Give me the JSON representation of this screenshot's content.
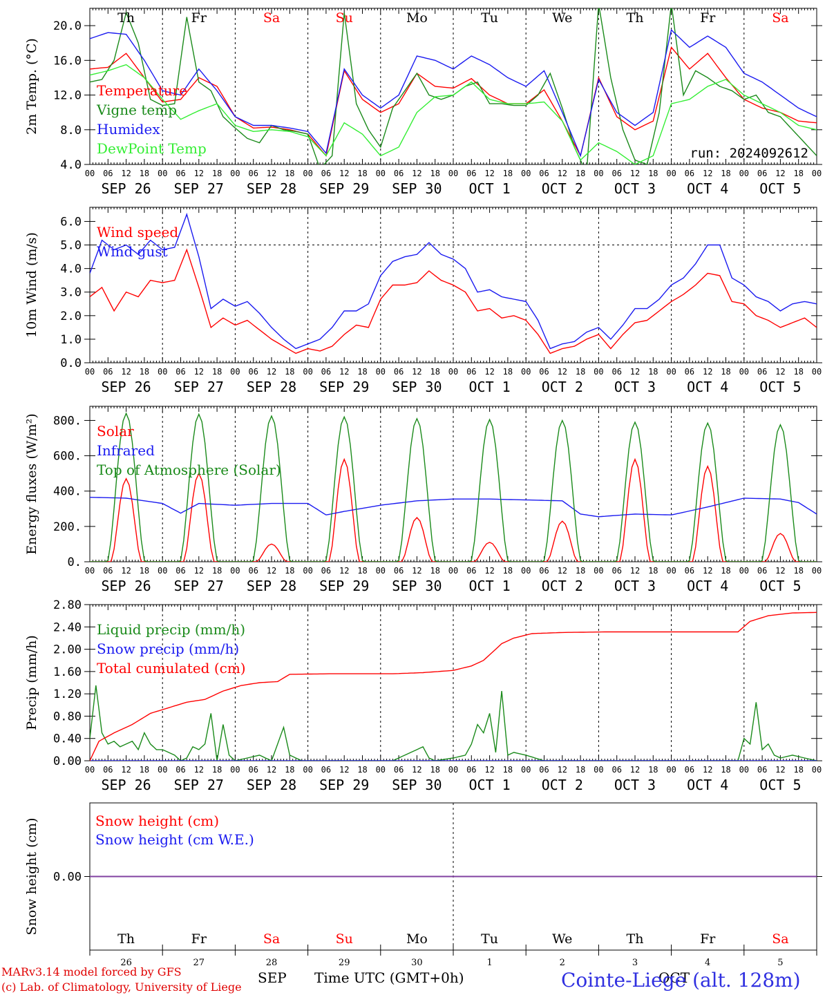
{
  "colors": {
    "red": "#ff0000",
    "dark_green": "#1a8a1a",
    "blue": "#1a1af0",
    "light_green": "#33ee33",
    "purple": "#8040a0"
  },
  "days": [
    "Th",
    "Fr",
    "Sa",
    "Su",
    "Mo",
    "Tu",
    "We",
    "Th",
    "Fr",
    "Sa"
  ],
  "day_colors": [
    "black",
    "black",
    "red",
    "red",
    "black",
    "black",
    "black",
    "black",
    "black",
    "red"
  ],
  "dates": [
    "SEP 26",
    "SEP 27",
    "SEP 28",
    "SEP 29",
    "SEP 30",
    "OCT  1",
    "OCT  2",
    "OCT  3",
    "OCT  4",
    "OCT  5"
  ],
  "day_numbers": [
    "26",
    "27",
    "28",
    "29",
    "30",
    "1",
    "2",
    "3",
    "4",
    "5"
  ],
  "hour_labels": [
    "00",
    "06",
    "12",
    "18"
  ],
  "hour_final": "00",
  "run_label": "run: 2024092612",
  "footer": {
    "model": "MARv3.14 model forced by GFS",
    "lab": "(c) Lab. of Climatology, University of Liege",
    "month_sep": "SEP",
    "month_oct": "OCT",
    "xtitle": "Time UTC (GMT+0h)",
    "station": "Cointe-Liege (alt. 128m)"
  },
  "chart_data": [
    {
      "type": "line",
      "ylabel": "2m Temp. (°C)",
      "yticks": [
        "4.0",
        "8.0",
        "12.0",
        "16.0",
        "20.0"
      ],
      "ylim": [
        4,
        22
      ],
      "x_unit": "hours from 2024-09-26 00 UTC",
      "series": [
        {
          "name": "Temperature",
          "color": "#ff0000",
          "x": [
            0,
            6,
            12,
            18,
            24,
            30,
            36,
            42,
            48,
            54,
            60,
            66,
            72,
            78,
            84,
            90,
            96,
            102,
            108,
            114,
            120,
            126,
            132,
            138,
            144,
            150,
            156,
            162,
            168,
            174,
            180,
            186,
            192,
            198,
            204,
            210,
            216,
            222,
            228,
            234,
            240
          ],
          "values": [
            15.0,
            15.2,
            16.8,
            14.0,
            11.2,
            11.5,
            14.0,
            13.0,
            9.5,
            8.2,
            8.3,
            8.0,
            7.5,
            5.0,
            14.8,
            11.5,
            10.0,
            11.0,
            14.5,
            13.0,
            12.8,
            13.9,
            12.0,
            11.0,
            11.0,
            12.6,
            9.0,
            5.0,
            14.0,
            9.5,
            8.0,
            9.0,
            17.5,
            15.0,
            16.8,
            14.0,
            11.5,
            10.5,
            10.0,
            9.0,
            8.8
          ]
        },
        {
          "name": "Vigne temp",
          "color": "#1a8a1a",
          "x": [
            0,
            4,
            8,
            12,
            16,
            20,
            24,
            28,
            32,
            36,
            40,
            44,
            48,
            52,
            56,
            60,
            64,
            68,
            72,
            76,
            80,
            84,
            88,
            92,
            96,
            100,
            104,
            108,
            112,
            116,
            120,
            124,
            128,
            132,
            136,
            140,
            144,
            148,
            152,
            156,
            160,
            164,
            168,
            172,
            176,
            180,
            184,
            188,
            192,
            196,
            200,
            204,
            208,
            212,
            216,
            220,
            224,
            228,
            232,
            236,
            240
          ],
          "values": [
            13.5,
            13.8,
            16.0,
            21.5,
            18.0,
            11.5,
            10.8,
            11.0,
            21.0,
            13.5,
            12.5,
            9.5,
            8.2,
            7.0,
            6.5,
            8.5,
            8.0,
            7.8,
            7.5,
            3.5,
            5.0,
            21.5,
            11.0,
            8.0,
            6.0,
            10.5,
            12.5,
            14.5,
            12.0,
            11.5,
            12.0,
            13.0,
            13.5,
            11.0,
            11.0,
            10.8,
            10.8,
            12.0,
            14.5,
            10.5,
            6.0,
            3.0,
            22.5,
            14.0,
            8.0,
            4.5,
            4.0,
            10.0,
            22.5,
            12.0,
            14.8,
            14.0,
            13.0,
            12.5,
            11.5,
            12.0,
            10.0,
            9.5,
            8.0,
            6.5,
            5.0
          ]
        },
        {
          "name": "Humidex",
          "color": "#1a1af0",
          "x": [
            0,
            6,
            12,
            18,
            24,
            30,
            36,
            42,
            48,
            54,
            60,
            66,
            72,
            78,
            84,
            90,
            96,
            102,
            108,
            114,
            120,
            126,
            132,
            138,
            144,
            150,
            156,
            162,
            168,
            174,
            180,
            186,
            192,
            198,
            204,
            210,
            216,
            222,
            228,
            234,
            240
          ],
          "values": [
            18.5,
            19.2,
            19.0,
            16.0,
            12.5,
            12.0,
            15.0,
            12.5,
            9.5,
            8.5,
            8.5,
            8.2,
            7.8,
            5.3,
            15.0,
            12.0,
            10.5,
            12.0,
            16.5,
            16.0,
            15.0,
            16.5,
            15.5,
            14.0,
            13.0,
            14.8,
            10.0,
            5.0,
            13.8,
            10.0,
            8.5,
            10.0,
            19.5,
            17.5,
            18.8,
            17.5,
            14.5,
            13.5,
            12.0,
            10.5,
            9.5
          ]
        },
        {
          "name": "DewPoint Temp",
          "color": "#33ee33",
          "x": [
            0,
            6,
            12,
            18,
            24,
            30,
            36,
            42,
            48,
            54,
            60,
            66,
            72,
            78,
            84,
            90,
            96,
            102,
            108,
            114,
            120,
            126,
            132,
            138,
            144,
            150,
            156,
            162,
            168,
            174,
            180,
            186,
            192,
            198,
            204,
            210,
            216,
            222,
            228,
            234,
            240
          ],
          "values": [
            14.3,
            14.8,
            15.5,
            14.0,
            11.5,
            9.2,
            10.2,
            11.0,
            8.5,
            7.8,
            8.0,
            7.8,
            7.2,
            5.0,
            8.8,
            7.5,
            5.0,
            6.0,
            10.0,
            11.8,
            12.0,
            13.5,
            11.5,
            11.0,
            11.0,
            11.2,
            9.0,
            4.5,
            6.5,
            5.5,
            4.0,
            5.0,
            11.0,
            11.5,
            13.0,
            13.8,
            12.0,
            11.0,
            10.0,
            8.5,
            8.0
          ]
        }
      ]
    },
    {
      "type": "line",
      "ylabel": "10m Wind (m/s)",
      "yticks": [
        "0.0",
        "1.0",
        "2.0",
        "3.0",
        "4.0",
        "5.0",
        "6.0"
      ],
      "ylim": [
        0,
        6.6
      ],
      "reference_line": 5.0,
      "x_unit": "hours from 2024-09-26 00 UTC",
      "series": [
        {
          "name": "Wind speed",
          "color": "#ff0000",
          "x": [
            0,
            4,
            8,
            12,
            16,
            20,
            24,
            28,
            32,
            36,
            40,
            44,
            48,
            52,
            56,
            60,
            64,
            68,
            72,
            76,
            80,
            84,
            88,
            92,
            96,
            100,
            104,
            108,
            112,
            116,
            120,
            124,
            128,
            132,
            136,
            140,
            144,
            148,
            152,
            156,
            160,
            164,
            168,
            172,
            176,
            180,
            184,
            188,
            192,
            196,
            200,
            204,
            208,
            212,
            216,
            220,
            224,
            228,
            232,
            236,
            240
          ],
          "values": [
            2.8,
            3.2,
            2.2,
            3.0,
            2.8,
            3.5,
            3.4,
            3.5,
            4.8,
            3.2,
            1.5,
            1.9,
            1.6,
            1.8,
            1.4,
            1.0,
            0.7,
            0.4,
            0.6,
            0.5,
            0.7,
            1.2,
            1.6,
            1.5,
            2.7,
            3.3,
            3.3,
            3.4,
            3.9,
            3.5,
            3.3,
            3.0,
            2.2,
            2.3,
            1.9,
            2.0,
            1.8,
            1.2,
            0.4,
            0.6,
            0.7,
            1.0,
            1.2,
            0.6,
            1.2,
            1.7,
            1.8,
            2.2,
            2.6,
            2.9,
            3.3,
            3.8,
            3.7,
            2.6,
            2.5,
            2.0,
            1.8,
            1.5,
            1.7,
            1.9,
            1.5
          ]
        },
        {
          "name": "Wind gust",
          "color": "#1a1af0",
          "x": [
            0,
            4,
            8,
            12,
            16,
            20,
            24,
            28,
            32,
            36,
            40,
            44,
            48,
            52,
            56,
            60,
            64,
            68,
            72,
            76,
            80,
            84,
            88,
            92,
            96,
            100,
            104,
            108,
            112,
            116,
            120,
            124,
            128,
            132,
            136,
            140,
            144,
            148,
            152,
            156,
            160,
            164,
            168,
            172,
            176,
            180,
            184,
            188,
            192,
            196,
            200,
            204,
            208,
            212,
            216,
            220,
            224,
            228,
            232,
            236,
            240
          ],
          "values": [
            3.8,
            5.2,
            4.8,
            5.0,
            4.6,
            5.2,
            4.8,
            4.9,
            6.3,
            4.5,
            2.3,
            2.7,
            2.4,
            2.6,
            2.1,
            1.5,
            1.0,
            0.6,
            0.8,
            1.0,
            1.5,
            2.2,
            2.2,
            2.5,
            3.7,
            4.3,
            4.5,
            4.6,
            5.1,
            4.6,
            4.4,
            4.0,
            3.0,
            3.1,
            2.8,
            2.7,
            2.6,
            1.8,
            0.6,
            0.8,
            0.9,
            1.3,
            1.5,
            1.0,
            1.6,
            2.3,
            2.3,
            2.7,
            3.3,
            3.6,
            4.2,
            5.0,
            5.0,
            3.6,
            3.3,
            2.8,
            2.6,
            2.2,
            2.5,
            2.6,
            2.5
          ]
        }
      ]
    },
    {
      "type": "line",
      "ylabel": "Energy fluxes (W/m²)",
      "yticks": [
        "0.",
        "200.",
        "400.",
        "600.",
        "800."
      ],
      "ylim": [
        0,
        880
      ],
      "x_unit": "hours from 2024-09-26 00 UTC",
      "series": [
        {
          "name": "Solar",
          "color": "#ff0000",
          "daily_peak": [
            470,
            500,
            100,
            580,
            250,
            110,
            230,
            580,
            540,
            160
          ]
        },
        {
          "name": "Infrared",
          "color": "#1a1af0",
          "x": [
            0,
            12,
            24,
            30,
            36,
            48,
            60,
            72,
            78,
            84,
            96,
            108,
            120,
            132,
            144,
            156,
            162,
            168,
            180,
            192,
            204,
            216,
            228,
            234,
            240
          ],
          "values": [
            365,
            360,
            330,
            275,
            330,
            320,
            330,
            330,
            265,
            285,
            320,
            345,
            355,
            355,
            350,
            345,
            270,
            255,
            270,
            265,
            310,
            360,
            355,
            335,
            270
          ]
        },
        {
          "name": "Top of Atmosphere (Solar)",
          "color": "#1a8a1a",
          "daily_peak": [
            840,
            835,
            825,
            820,
            810,
            805,
            800,
            790,
            785,
            775
          ]
        }
      ]
    },
    {
      "type": "line",
      "ylabel": "Precip (mm/h)",
      "yticks": [
        "0.00",
        "0.40",
        "0.80",
        "1.20",
        "1.60",
        "2.00",
        "2.40",
        "2.80"
      ],
      "ylim": [
        0,
        2.8
      ],
      "x_unit": "hours from 2024-09-26 00 UTC",
      "series": [
        {
          "name": "Liquid precip (mm/h)",
          "color": "#1a8a1a",
          "x": [
            0,
            2,
            4,
            6,
            8,
            10,
            12,
            14,
            16,
            18,
            20,
            22,
            24,
            26,
            28,
            30,
            32,
            34,
            36,
            38,
            40,
            42,
            44,
            46,
            48,
            52,
            56,
            60,
            62,
            64,
            66,
            70,
            80,
            100,
            110,
            112,
            114,
            120,
            124,
            126,
            128,
            130,
            132,
            134,
            136,
            138,
            140,
            144,
            150,
            160,
            200,
            214,
            216,
            218,
            220,
            222,
            224,
            226,
            228,
            232,
            236,
            240
          ],
          "values": [
            0.4,
            1.35,
            0.5,
            0.3,
            0.35,
            0.25,
            0.3,
            0.35,
            0.2,
            0.5,
            0.3,
            0.2,
            0.2,
            0.15,
            0.1,
            0.0,
            0.05,
            0.25,
            0.2,
            0.3,
            0.85,
            0.0,
            0.65,
            0.1,
            0.0,
            0.05,
            0.1,
            0.0,
            0.3,
            0.6,
            0.1,
            0.0,
            0.0,
            0.0,
            0.25,
            0.05,
            0.0,
            0.05,
            0.1,
            0.3,
            0.65,
            0.5,
            0.85,
            0.15,
            1.25,
            0.1,
            0.15,
            0.1,
            0.0,
            0.0,
            0.0,
            0.0,
            0.4,
            0.3,
            1.05,
            0.2,
            0.3,
            0.1,
            0.05,
            0.1,
            0.05,
            0.0
          ]
        },
        {
          "name": "Snow precip (mm/h)",
          "color": "#1a1af0",
          "x": [
            0,
            240
          ],
          "values": [
            0,
            0
          ]
        },
        {
          "name": "Total cumulated (cm)",
          "color": "#ff0000",
          "x": [
            0,
            3,
            8,
            14,
            20,
            26,
            32,
            38,
            44,
            50,
            56,
            62,
            66,
            80,
            100,
            110,
            120,
            126,
            130,
            136,
            140,
            146,
            156,
            170,
            190,
            214,
            218,
            224,
            232,
            240
          ],
          "values": [
            0.0,
            0.35,
            0.5,
            0.65,
            0.85,
            0.95,
            1.05,
            1.1,
            1.25,
            1.35,
            1.4,
            1.42,
            1.55,
            1.56,
            1.56,
            1.58,
            1.62,
            1.7,
            1.8,
            2.1,
            2.2,
            2.28,
            2.3,
            2.31,
            2.31,
            2.31,
            2.5,
            2.6,
            2.65,
            2.66
          ]
        }
      ]
    },
    {
      "type": "line",
      "ylabel": "Snow height (cm)",
      "yticks": [
        "0.00"
      ],
      "ylim": [
        -1,
        1
      ],
      "x_unit": "hours from 2024-09-26 00 UTC",
      "series": [
        {
          "name": "Snow height (cm)",
          "color": "#ff0000",
          "x": [
            0,
            240
          ],
          "values": [
            0,
            0
          ]
        },
        {
          "name": "Snow height (cm W.E.)",
          "color": "#1a1af0",
          "x": [
            0,
            240
          ],
          "values": [
            0,
            0
          ]
        }
      ]
    }
  ]
}
